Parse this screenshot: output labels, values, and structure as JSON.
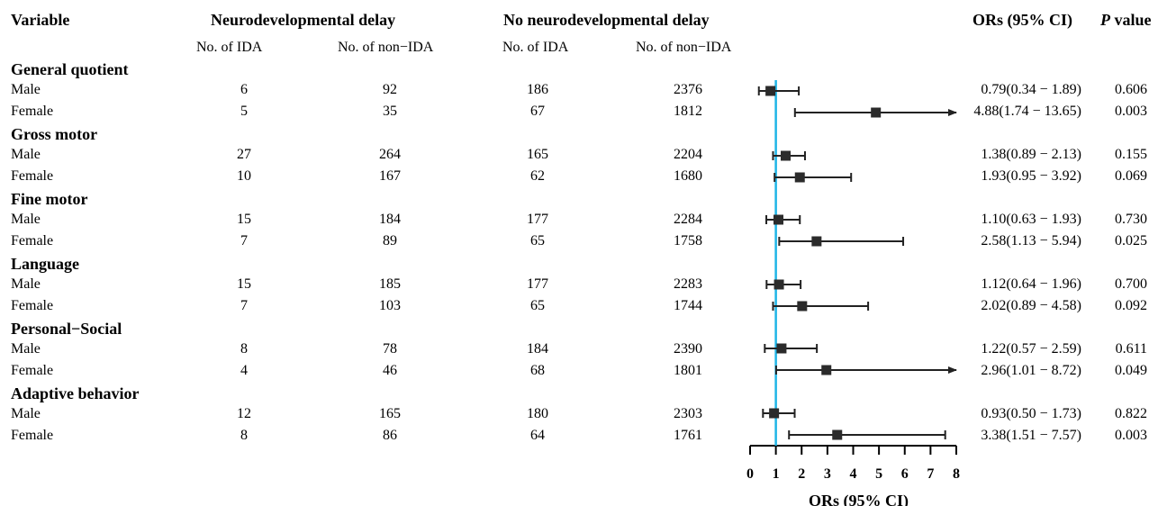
{
  "headers": {
    "variable": "Variable",
    "neuro_delay": "Neurodevelopmental delay",
    "no_neuro_delay": "No neurodevelopmental delay",
    "ors": "ORs (95% CI)",
    "p_italic": "P",
    "p_rest": " value"
  },
  "subheaders": {
    "ida": "No. of IDA",
    "non_ida": "No. of non−IDA"
  },
  "groups": [
    {
      "name": "General quotient",
      "rows": [
        {
          "label": "Male",
          "nd_ida": "6",
          "nd_nonida": "92",
          "nnd_ida": "186",
          "nnd_nonida": "2376",
          "or_text": "0.79(0.34 − 1.89)",
          "p": "0.606"
        },
        {
          "label": "Female",
          "nd_ida": "5",
          "nd_nonida": "35",
          "nnd_ida": "67",
          "nnd_nonida": "1812",
          "or_text": "4.88(1.74 − 13.65)",
          "p": "0.003"
        }
      ]
    },
    {
      "name": "Gross motor",
      "rows": [
        {
          "label": "Male",
          "nd_ida": "27",
          "nd_nonida": "264",
          "nnd_ida": "165",
          "nnd_nonida": "2204",
          "or_text": "1.38(0.89 − 2.13)",
          "p": "0.155"
        },
        {
          "label": "Female",
          "nd_ida": "10",
          "nd_nonida": "167",
          "nnd_ida": "62",
          "nnd_nonida": "1680",
          "or_text": "1.93(0.95 − 3.92)",
          "p": "0.069"
        }
      ]
    },
    {
      "name": "Fine motor",
      "rows": [
        {
          "label": "Male",
          "nd_ida": "15",
          "nd_nonida": "184",
          "nnd_ida": "177",
          "nnd_nonida": "2284",
          "or_text": "1.10(0.63 − 1.93)",
          "p": "0.730"
        },
        {
          "label": "Female",
          "nd_ida": "7",
          "nd_nonida": "89",
          "nnd_ida": "65",
          "nnd_nonida": "1758",
          "or_text": "2.58(1.13 − 5.94)",
          "p": "0.025"
        }
      ]
    },
    {
      "name": "Language",
      "rows": [
        {
          "label": "Male",
          "nd_ida": "15",
          "nd_nonida": "185",
          "nnd_ida": "177",
          "nnd_nonida": "2283",
          "or_text": "1.12(0.64 − 1.96)",
          "p": "0.700"
        },
        {
          "label": "Female",
          "nd_ida": "7",
          "nd_nonida": "103",
          "nnd_ida": "65",
          "nnd_nonida": "1744",
          "or_text": "2.02(0.89 − 4.58)",
          "p": "0.092"
        }
      ]
    },
    {
      "name": "Personal−Social",
      "rows": [
        {
          "label": "Male",
          "nd_ida": "8",
          "nd_nonida": "78",
          "nnd_ida": "184",
          "nnd_nonida": "2390",
          "or_text": "1.22(0.57 − 2.59)",
          "p": "0.611"
        },
        {
          "label": "Female",
          "nd_ida": "4",
          "nd_nonida": "46",
          "nnd_ida": "68",
          "nnd_nonida": "1801",
          "or_text": "2.96(1.01 − 8.72)",
          "p": "0.049"
        }
      ]
    },
    {
      "name": "Adaptive behavior",
      "rows": [
        {
          "label": "Male",
          "nd_ida": "12",
          "nd_nonida": "165",
          "nnd_ida": "180",
          "nnd_nonida": "2303",
          "or_text": "0.93(0.50 − 1.73)",
          "p": "0.822"
        },
        {
          "label": "Female",
          "nd_ida": "8",
          "nd_nonida": "86",
          "nnd_ida": "64",
          "nnd_nonida": "1761",
          "or_text": "3.38(1.51 − 7.57)",
          "p": "0.003"
        }
      ]
    }
  ],
  "chart_data": {
    "type": "forest",
    "xlabel": "ORs (95% CI)",
    "xlim": [
      0,
      8
    ],
    "xticks": [
      "0",
      "1",
      "2",
      "3",
      "4",
      "5",
      "6",
      "7",
      "8"
    ],
    "reference_line": 1,
    "reference_color": "#1fb5e6",
    "marker_color": "#2b2b2b",
    "points": [
      {
        "or": 0.79,
        "lo": 0.34,
        "hi": 1.89,
        "arrow": false
      },
      {
        "or": 4.88,
        "lo": 1.74,
        "hi": 13.65,
        "arrow": true
      },
      {
        "or": 1.38,
        "lo": 0.89,
        "hi": 2.13,
        "arrow": false
      },
      {
        "or": 1.93,
        "lo": 0.95,
        "hi": 3.92,
        "arrow": false
      },
      {
        "or": 1.1,
        "lo": 0.63,
        "hi": 1.93,
        "arrow": false
      },
      {
        "or": 2.58,
        "lo": 1.13,
        "hi": 5.94,
        "arrow": false
      },
      {
        "or": 1.12,
        "lo": 0.64,
        "hi": 1.96,
        "arrow": false
      },
      {
        "or": 2.02,
        "lo": 0.89,
        "hi": 4.58,
        "arrow": false
      },
      {
        "or": 1.22,
        "lo": 0.57,
        "hi": 2.59,
        "arrow": false
      },
      {
        "or": 2.96,
        "lo": 1.01,
        "hi": 8.72,
        "arrow": true
      },
      {
        "or": 0.93,
        "lo": 0.5,
        "hi": 1.73,
        "arrow": false
      },
      {
        "or": 3.38,
        "lo": 1.51,
        "hi": 7.57,
        "arrow": false
      }
    ]
  }
}
